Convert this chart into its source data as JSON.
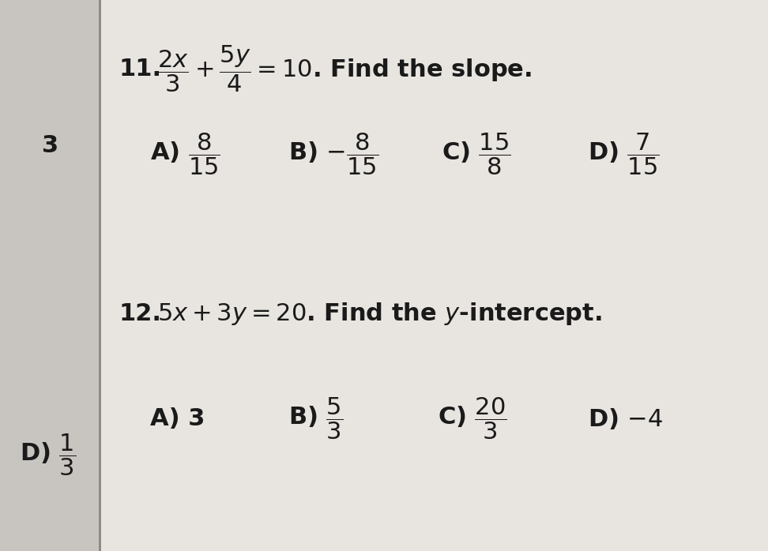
{
  "bg_color": "#d0cdc8",
  "panel_color": "#e8e5e0",
  "left_strip_color": "#c8c5c0",
  "answer_fontsize": 22,
  "text_color": "#1a1a1a",
  "q11_number": "11.",
  "q11_equation": "$\\dfrac{2x}{3}+\\dfrac{5y}{4}=10$. Find the slope.",
  "q11_A": "A) $\\dfrac{8}{15}$",
  "q11_B": "B) $-\\dfrac{8}{15}$",
  "q11_C": "C) $\\dfrac{15}{8}$",
  "q11_D": "D) $\\dfrac{7}{15}$",
  "q12_number": "12.",
  "q12_equation": "$5x+3y=20$. Find the $y$-intercept.",
  "q12_A": "A) 3",
  "q12_B": "B) $\\dfrac{5}{3}$",
  "q12_C": "C) $\\dfrac{20}{3}$",
  "q12_D": "D) $-4$",
  "left_text_3": "3",
  "left_text_D": "D) $\\dfrac{1}{3}$"
}
